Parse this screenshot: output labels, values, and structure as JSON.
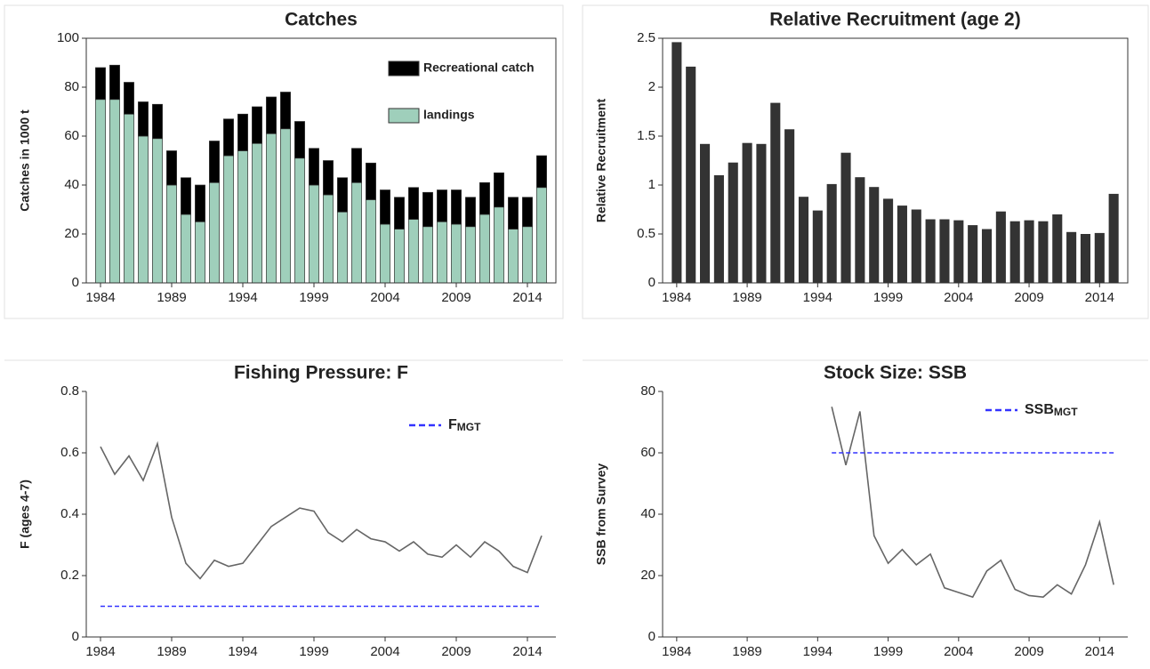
{
  "chart_data": [
    {
      "type": "bar",
      "stacked": true,
      "title": "Catches",
      "ylabel": "Catches in 1000 t",
      "x": [
        1984,
        1985,
        1986,
        1987,
        1988,
        1989,
        1990,
        1991,
        1992,
        1993,
        1994,
        1995,
        1996,
        1997,
        1998,
        1999,
        2000,
        2001,
        2002,
        2003,
        2004,
        2005,
        2006,
        2007,
        2008,
        2009,
        2010,
        2011,
        2012,
        2013,
        2014,
        2015
      ],
      "series": [
        {
          "name": "landings",
          "color": "#9fcfbb",
          "values": [
            75,
            75,
            69,
            60,
            59,
            40,
            28,
            25,
            41,
            52,
            54,
            57,
            61,
            63,
            51,
            40,
            36,
            29,
            41,
            34,
            24,
            22,
            26,
            23,
            25,
            24,
            23,
            28,
            31,
            22,
            23,
            39
          ]
        },
        {
          "name": "Recreational catch",
          "color": "#000000",
          "values": [
            13,
            14,
            13,
            14,
            14,
            14,
            15,
            15,
            17,
            15,
            15,
            15,
            15,
            15,
            15,
            15,
            14,
            14,
            14,
            15,
            14,
            13,
            13,
            14,
            13,
            14,
            12,
            13,
            14,
            13,
            12,
            13
          ]
        }
      ],
      "xlim": [
        1983,
        2016
      ],
      "xticks": [
        1984,
        1989,
        1994,
        1999,
        2004,
        2009,
        2014
      ],
      "ylim": [
        0,
        100
      ],
      "yticks": [
        0,
        20,
        40,
        60,
        80,
        100
      ]
    },
    {
      "type": "bar",
      "title": "Relative Recruitment (age 2)",
      "ylabel": "Relative Recruitment",
      "color": "#333333",
      "x": [
        1984,
        1985,
        1986,
        1987,
        1988,
        1989,
        1990,
        1991,
        1992,
        1993,
        1994,
        1995,
        1996,
        1997,
        1998,
        1999,
        2000,
        2001,
        2002,
        2003,
        2004,
        2005,
        2006,
        2007,
        2008,
        2009,
        2010,
        2011,
        2012,
        2013,
        2014,
        2015
      ],
      "values": [
        2.46,
        2.21,
        1.42,
        1.1,
        1.23,
        1.43,
        1.42,
        1.84,
        1.57,
        0.88,
        0.74,
        1.01,
        1.33,
        1.08,
        0.98,
        0.86,
        0.79,
        0.75,
        0.65,
        0.65,
        0.64,
        0.59,
        0.55,
        0.73,
        0.63,
        0.64,
        0.63,
        0.7,
        0.52,
        0.5,
        0.51,
        0.91
      ],
      "xlim": [
        1983,
        2016
      ],
      "xticks": [
        1984,
        1989,
        1994,
        1999,
        2004,
        2009,
        2014
      ],
      "ylim": [
        0,
        2.5
      ],
      "yticks": [
        0,
        0.5,
        1,
        1.5,
        2,
        2.5
      ]
    },
    {
      "type": "line",
      "title": "Fishing Pressure: F",
      "ylabel": "F (ages 4-7)",
      "color": "#666666",
      "x": [
        1984,
        1985,
        1986,
        1987,
        1988,
        1989,
        1990,
        1991,
        1992,
        1993,
        1994,
        1995,
        1996,
        1997,
        1998,
        1999,
        2000,
        2001,
        2002,
        2003,
        2004,
        2005,
        2006,
        2007,
        2008,
        2009,
        2010,
        2011,
        2012,
        2013,
        2014,
        2015
      ],
      "values": [
        0.62,
        0.53,
        0.59,
        0.51,
        0.63,
        0.39,
        0.24,
        0.19,
        0.25,
        0.23,
        0.24,
        0.3,
        0.36,
        0.39,
        0.42,
        0.41,
        0.34,
        0.31,
        0.35,
        0.32,
        0.31,
        0.28,
        0.31,
        0.27,
        0.26,
        0.3,
        0.26,
        0.31,
        0.28,
        0.23,
        0.21,
        0.33
      ],
      "reference": {
        "name": "F",
        "name_sub": "MGT",
        "value": 0.1,
        "color": "#3333ff"
      },
      "xlim": [
        1983,
        2016
      ],
      "xticks": [
        1984,
        1989,
        1994,
        1999,
        2004,
        2009,
        2014
      ],
      "ylim": [
        0,
        0.8
      ],
      "yticks": [
        0,
        0.2,
        0.4,
        0.6,
        0.8
      ]
    },
    {
      "type": "line",
      "title": "Stock Size: SSB",
      "ylabel": "SSB from Survey",
      "color": "#666666",
      "x": [
        1995,
        1996,
        1997,
        1998,
        1999,
        2000,
        2001,
        2002,
        2003,
        2004,
        2005,
        2006,
        2007,
        2008,
        2009,
        2010,
        2011,
        2012,
        2013,
        2014,
        2015
      ],
      "values": [
        75,
        56,
        73.5,
        33,
        24,
        28.5,
        23.5,
        27,
        16,
        14.5,
        13,
        21.5,
        25,
        15.5,
        13.5,
        13,
        17,
        14,
        23.5,
        37.5,
        17
      ],
      "reference": {
        "name": "SSB",
        "name_sub": "MGT",
        "value": 60,
        "color": "#3333ff"
      },
      "xlim": [
        1983,
        2016
      ],
      "xticks": [
        1984,
        1989,
        1994,
        1999,
        2004,
        2009,
        2014
      ],
      "ylim": [
        0,
        80
      ],
      "yticks": [
        0,
        20,
        40,
        60,
        80
      ]
    }
  ]
}
